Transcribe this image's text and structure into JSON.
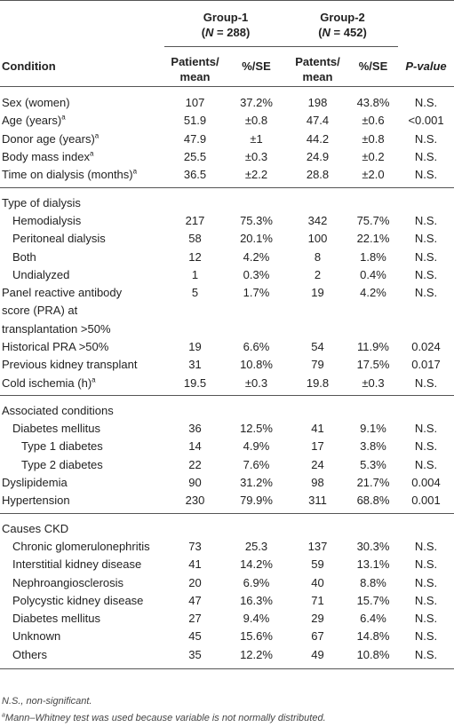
{
  "header": {
    "group1_title": "Group-1",
    "group1_n": "(N = 288)",
    "group2_title": "Group-2",
    "group2_n": "(N = 452)",
    "condition_label": "Condition",
    "col_patients": "Patients/ mean",
    "col_pct": "%/SE",
    "col_patients2": "Patents/ mean",
    "col_pct2": "%/SE",
    "col_p": "P-value"
  },
  "rows_a": [
    {
      "label": "Sex (women)",
      "sup": "",
      "v1": "107",
      "v2": "37.2%",
      "v3": "198",
      "v4": "43.8%",
      "p": "N.S."
    },
    {
      "label": "Age (years)",
      "sup": "a",
      "v1": "51.9",
      "v2": "±0.8",
      "v3": "47.4",
      "v4": "±0.6",
      "p": "<0.001"
    },
    {
      "label": "Donor age (years)",
      "sup": "a",
      "v1": "47.9",
      "v2": "±1",
      "v3": "44.2",
      "v4": "±0.8",
      "p": "N.S."
    },
    {
      "label": "Body mass index",
      "sup": "a",
      "v1": "25.5",
      "v2": "±0.3",
      "v3": "24.9",
      "v4": "±0.2",
      "p": "N.S."
    },
    {
      "label": "Time on dialysis (months)",
      "sup": "a",
      "v1": "36.5",
      "v2": "±2.2",
      "v3": "28.8",
      "v4": "±2.0",
      "p": "N.S."
    }
  ],
  "rows_b": [
    {
      "label": "Type of dialysis",
      "sup": "",
      "indent": 0,
      "v1": "",
      "v2": "",
      "v3": "",
      "v4": "",
      "p": ""
    },
    {
      "label": "Hemodialysis",
      "sup": "",
      "indent": 1,
      "v1": "217",
      "v2": "75.3%",
      "v3": "342",
      "v4": "75.7%",
      "p": "N.S."
    },
    {
      "label": "Peritoneal dialysis",
      "sup": "",
      "indent": 1,
      "v1": "58",
      "v2": "20.1%",
      "v3": "100",
      "v4": "22.1%",
      "p": "N.S."
    },
    {
      "label": "Both",
      "sup": "",
      "indent": 1,
      "v1": "12",
      "v2": "4.2%",
      "v3": "8",
      "v4": "1.8%",
      "p": "N.S."
    },
    {
      "label": "Undialyzed",
      "sup": "",
      "indent": 1,
      "v1": "1",
      "v2": "0.3%",
      "v3": "2",
      "v4": "0.4%",
      "p": "N.S."
    }
  ],
  "pra": {
    "line1": "Panel reactive antibody",
    "line2": "score (PRA) at",
    "line3": "transplantation >50%",
    "v1": "5",
    "v2": "1.7%",
    "v3": "19",
    "v4": "4.2%",
    "p": "N.S."
  },
  "rows_c": [
    {
      "label": "Historical PRA >50%",
      "sup": "",
      "indent": 0,
      "v1": "19",
      "v2": "6.6%",
      "v3": "54",
      "v4": "11.9%",
      "p": "0.024"
    },
    {
      "label": "Previous kidney transplant",
      "sup": "",
      "indent": 0,
      "v1": "31",
      "v2": "10.8%",
      "v3": "79",
      "v4": "17.5%",
      "p": "0.017"
    },
    {
      "label": "Cold ischemia (h)",
      "sup": "a",
      "indent": 0,
      "v1": "19.5",
      "v2": "±0.3",
      "v3": "19.8",
      "v4": "±0.3",
      "p": "N.S."
    }
  ],
  "rows_d": [
    {
      "label": "Associated conditions",
      "sup": "",
      "indent": 0,
      "v1": "",
      "v2": "",
      "v3": "",
      "v4": "",
      "p": ""
    },
    {
      "label": "Diabetes mellitus",
      "sup": "",
      "indent": 1,
      "v1": "36",
      "v2": "12.5%",
      "v3": "41",
      "v4": "9.1%",
      "p": "N.S."
    },
    {
      "label": "Type 1 diabetes",
      "sup": "",
      "indent": 2,
      "v1": "14",
      "v2": "4.9%",
      "v3": "17",
      "v4": "3.8%",
      "p": "N.S."
    },
    {
      "label": "Type 2 diabetes",
      "sup": "",
      "indent": 2,
      "v1": "22",
      "v2": "7.6%",
      "v3": "24",
      "v4": "5.3%",
      "p": "N.S."
    },
    {
      "label": "Dyslipidemia",
      "sup": "",
      "indent": 0,
      "v1": "90",
      "v2": "31.2%",
      "v3": "98",
      "v4": "21.7%",
      "p": "0.004"
    },
    {
      "label": "Hypertension",
      "sup": "",
      "indent": 0,
      "v1": "230",
      "v2": "79.9%",
      "v3": "311",
      "v4": "68.8%",
      "p": "0.001"
    }
  ],
  "rows_e": [
    {
      "label": "Causes CKD",
      "sup": "",
      "indent": 0,
      "v1": "",
      "v2": "",
      "v3": "",
      "v4": "",
      "p": ""
    },
    {
      "label": "Chronic glomerulonephritis",
      "sup": "",
      "indent": 1,
      "v1": "73",
      "v2": "25.3",
      "v3": "137",
      "v4": "30.3%",
      "p": "N.S."
    },
    {
      "label": "Interstitial kidney disease",
      "sup": "",
      "indent": 1,
      "v1": "41",
      "v2": "14.2%",
      "v3": "59",
      "v4": "13.1%",
      "p": "N.S."
    },
    {
      "label": "Nephroangiosclerosis",
      "sup": "",
      "indent": 1,
      "v1": "20",
      "v2": "6.9%",
      "v3": "40",
      "v4": "8.8%",
      "p": "N.S."
    },
    {
      "label": "Polycystic kidney disease",
      "sup": "",
      "indent": 1,
      "v1": "47",
      "v2": "16.3%",
      "v3": "71",
      "v4": "15.7%",
      "p": "N.S."
    },
    {
      "label": "Diabetes mellitus",
      "sup": "",
      "indent": 1,
      "v1": "27",
      "v2": "9.4%",
      "v3": "29",
      "v4": "6.4%",
      "p": "N.S."
    },
    {
      "label": "Unknown",
      "sup": "",
      "indent": 1,
      "v1": "45",
      "v2": "15.6%",
      "v3": "67",
      "v4": "14.8%",
      "p": "N.S."
    },
    {
      "label": "Others",
      "sup": "",
      "indent": 1,
      "v1": "35",
      "v2": "12.2%",
      "v3": "49",
      "v4": "10.8%",
      "p": "N.S."
    }
  ],
  "notes": {
    "ns": "N.S., non-significant.",
    "sup": "a",
    "mw": "Mann–Whitney test was used because variable is not normally distributed."
  }
}
